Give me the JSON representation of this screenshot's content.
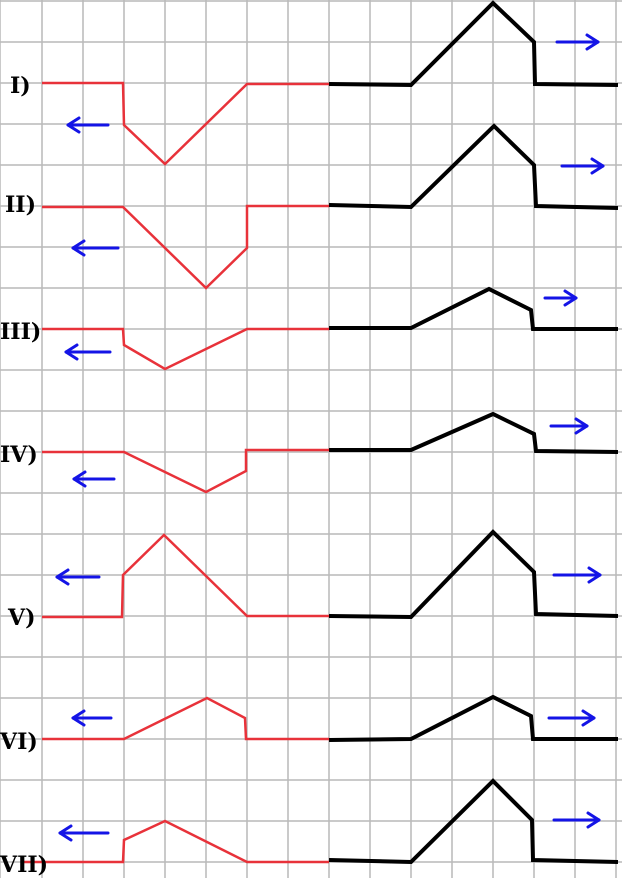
{
  "colors": {
    "grid": "#b9b9b9",
    "left_wave": "#e8323a",
    "right_wave": "#000000",
    "arrow": "#1414e6",
    "background": "#ffffff"
  },
  "rows": [
    {
      "label": "I)",
      "left_arrow": "left",
      "right_arrow": "right"
    },
    {
      "label": "II)",
      "left_arrow": "left",
      "right_arrow": "right"
    },
    {
      "label": "III)",
      "left_arrow": "left",
      "right_arrow": "right"
    },
    {
      "label": "IV)",
      "left_arrow": "left",
      "right_arrow": "right"
    },
    {
      "label": "V)",
      "left_arrow": "left",
      "right_arrow": "right"
    },
    {
      "label": "VI)",
      "left_arrow": "left",
      "right_arrow": "right"
    },
    {
      "label": "VII)",
      "left_arrow": "left",
      "right_arrow": "right"
    }
  ]
}
